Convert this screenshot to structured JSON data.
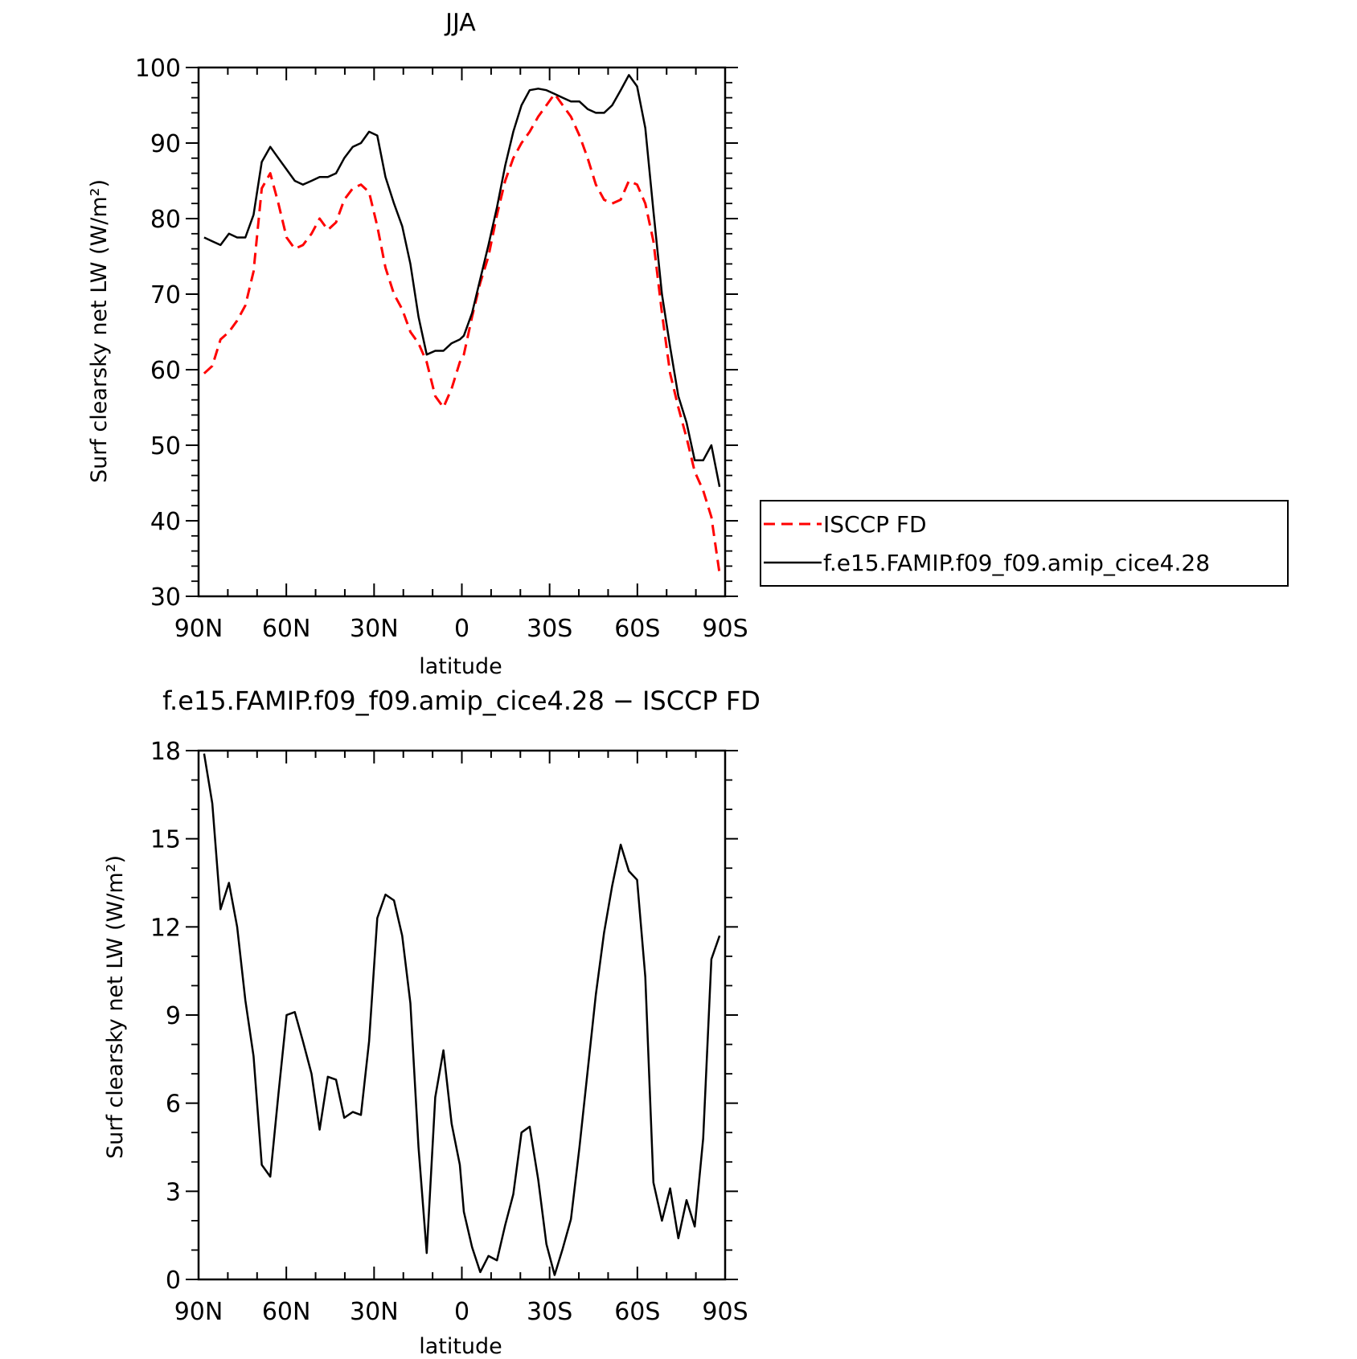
{
  "chart_data": [
    {
      "type": "line",
      "title": "JJA",
      "xlabel": "latitude",
      "ylabel": "Surf clearsky net LW (W/m²)",
      "x_ticklabels": [
        "90N",
        "60N",
        "30N",
        "0",
        "30S",
        "60S",
        "90S"
      ],
      "x_tickvalues": [
        90,
        60,
        30,
        0,
        -30,
        -60,
        -90
      ],
      "xlim": [
        90,
        -90
      ],
      "ylim": [
        30,
        100
      ],
      "y_ticks": [
        30,
        40,
        50,
        60,
        70,
        80,
        90,
        100
      ],
      "grid": false,
      "legend_position": "right",
      "x": [
        88.1,
        85.3,
        82.5,
        79.6,
        76.8,
        74.0,
        71.2,
        68.4,
        65.5,
        62.7,
        59.9,
        57.1,
        54.3,
        51.4,
        48.6,
        45.8,
        43.0,
        40.2,
        37.3,
        34.5,
        31.7,
        28.9,
        26.1,
        23.2,
        20.4,
        17.6,
        14.8,
        12.0,
        9.1,
        6.3,
        3.5,
        0.7,
        -0.7,
        -3.5,
        -6.3,
        -9.1,
        -12.0,
        -14.8,
        -17.6,
        -20.4,
        -23.2,
        -26.1,
        -28.9,
        -31.7,
        -34.5,
        -37.3,
        -40.2,
        -43.0,
        -45.8,
        -48.6,
        -51.4,
        -54.3,
        -57.1,
        -59.9,
        -62.7,
        -65.5,
        -68.4,
        -71.2,
        -74.0,
        -76.8,
        -79.6,
        -82.5,
        -85.3,
        -88.1
      ],
      "series": [
        {
          "name": "ISCCP FD",
          "color": "#ff0000",
          "dash": "dashed",
          "values": [
            59.5,
            60.5,
            64.0,
            65.0,
            66.5,
            68.5,
            73.0,
            84.0,
            86.0,
            82.0,
            77.5,
            76.0,
            76.5,
            78.0,
            80.0,
            78.5,
            79.5,
            82.5,
            84.0,
            84.5,
            83.5,
            79.0,
            73.5,
            70.0,
            68.0,
            65.0,
            63.5,
            61.0,
            56.5,
            55.0,
            57.5,
            61.0,
            62.0,
            67.0,
            71.5,
            75.0,
            80.5,
            85.0,
            88.0,
            90.0,
            91.5,
            93.5,
            95.0,
            96.5,
            95.0,
            93.5,
            91.0,
            88.0,
            84.5,
            82.5,
            82.0,
            82.5,
            85.0,
            84.5,
            82.0,
            77.0,
            67.5,
            59.5,
            55.0,
            51.0,
            46.5,
            44.0,
            40.5,
            33.0
          ]
        },
        {
          "name": "f.e15.FAMIP.f09_f09.amip_cice4.28",
          "color": "#000000",
          "dash": "solid",
          "values": [
            77.5,
            77.0,
            76.5,
            78.0,
            77.5,
            77.5,
            80.5,
            87.5,
            89.5,
            88.0,
            86.5,
            85.0,
            84.5,
            85.0,
            85.5,
            85.5,
            86.0,
            88.0,
            89.5,
            90.0,
            91.5,
            91.0,
            85.5,
            82.0,
            79.0,
            74.0,
            67.0,
            62.0,
            62.5,
            62.5,
            63.5,
            64.0,
            64.5,
            67.5,
            72.0,
            76.5,
            81.5,
            87.0,
            91.5,
            95.0,
            97.0,
            97.2,
            97.0,
            96.5,
            96.0,
            95.5,
            95.5,
            94.5,
            94.0,
            94.0,
            95.0,
            97.0,
            99.0,
            97.5,
            92.0,
            81.0,
            70.0,
            63.0,
            56.5,
            53.0,
            48.0,
            48.0,
            50.0,
            44.5
          ]
        }
      ]
    },
    {
      "type": "line",
      "title": "f.e15.FAMIP.f09_f09.amip_cice4.28 − ISCCP FD",
      "xlabel": "latitude",
      "ylabel": "Surf clearsky net LW (W/m²)",
      "x_ticklabels": [
        "90N",
        "60N",
        "30N",
        "0",
        "30S",
        "60S",
        "90S"
      ],
      "x_tickvalues": [
        90,
        60,
        30,
        0,
        -30,
        -60,
        -90
      ],
      "xlim": [
        90,
        -90
      ],
      "ylim": [
        0,
        18
      ],
      "y_ticks": [
        0,
        3,
        6,
        9,
        12,
        15,
        18
      ],
      "grid": false,
      "x": [
        88.1,
        85.3,
        82.5,
        79.6,
        76.8,
        74.0,
        71.2,
        68.4,
        65.5,
        62.7,
        59.9,
        57.1,
        54.3,
        51.4,
        48.6,
        45.8,
        43.0,
        40.2,
        37.3,
        34.5,
        31.7,
        28.9,
        26.1,
        23.2,
        20.4,
        17.6,
        14.8,
        12.0,
        9.1,
        6.3,
        3.5,
        0.7,
        -0.7,
        -3.5,
        -6.3,
        -9.1,
        -12.0,
        -14.8,
        -17.6,
        -20.4,
        -23.2,
        -26.1,
        -28.9,
        -31.7,
        -34.5,
        -37.3,
        -40.2,
        -43.0,
        -45.8,
        -48.6,
        -51.4,
        -54.3,
        -57.1,
        -59.9,
        -62.7,
        -65.5,
        -68.4,
        -71.2,
        -74.0,
        -76.8,
        -79.6,
        -82.5,
        -85.3,
        -88.1
      ],
      "series": [
        {
          "color": "#000000",
          "dash": "solid",
          "values": [
            17.9,
            16.2,
            12.6,
            13.5,
            12.0,
            9.5,
            7.6,
            3.9,
            3.5,
            6.3,
            9.0,
            9.1,
            8.1,
            7.0,
            5.1,
            6.9,
            6.8,
            5.5,
            5.7,
            5.6,
            8.1,
            12.3,
            13.1,
            12.9,
            11.7,
            9.4,
            4.5,
            0.9,
            6.2,
            7.8,
            5.3,
            3.9,
            2.3,
            1.1,
            0.25,
            0.8,
            0.65,
            1.85,
            2.9,
            5.0,
            5.2,
            3.4,
            1.2,
            0.15,
            1.05,
            2.05,
            4.5,
            7.1,
            9.7,
            11.8,
            13.4,
            14.8,
            13.9,
            13.6,
            10.3,
            3.3,
            2.0,
            3.1,
            1.4,
            2.7,
            1.8,
            4.8,
            10.9,
            11.7
          ]
        }
      ]
    }
  ]
}
